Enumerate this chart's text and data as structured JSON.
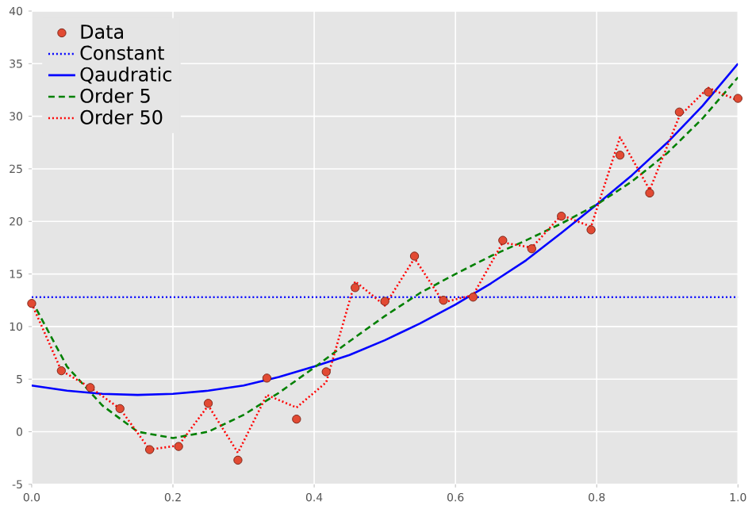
{
  "chart_data": {
    "type": "line",
    "xlim": [
      0,
      1
    ],
    "ylim": [
      -5,
      40
    ],
    "xticks": [
      {
        "value": 0,
        "label": "0.0"
      },
      {
        "value": 0.2,
        "label": "0.2"
      },
      {
        "value": 0.4,
        "label": "0.4"
      },
      {
        "value": 0.6,
        "label": "0.6"
      },
      {
        "value": 0.8,
        "label": "0.8"
      },
      {
        "value": 1,
        "label": "1.0"
      }
    ],
    "yticks": [
      -5,
      0,
      5,
      10,
      15,
      20,
      25,
      30,
      35,
      40
    ],
    "grid": true,
    "legend": "top left",
    "series": [
      {
        "name": "Data",
        "type": "scatter",
        "color": "#e24a33",
        "x": [
          0,
          0.042,
          0.083,
          0.125,
          0.167,
          0.208,
          0.25,
          0.292,
          0.333,
          0.375,
          0.417,
          0.458,
          0.5,
          0.542,
          0.583,
          0.625,
          0.667,
          0.708,
          0.75,
          0.792,
          0.833,
          0.875,
          0.917,
          0.958,
          1
        ],
        "values": [
          12.2,
          5.8,
          4.2,
          2.2,
          -1.7,
          -1.4,
          2.7,
          -2.7,
          5.1,
          1.2,
          5.7,
          13.7,
          12.4,
          16.7,
          12.5,
          12.8,
          18.2,
          17.4,
          20.5,
          19.2,
          26.3,
          22.7,
          30.4,
          32.3,
          31.7
        ]
      },
      {
        "name": "Constant",
        "line_style": "dotted",
        "color": "#0000ff",
        "x": [
          0,
          1
        ],
        "values": [
          12.8,
          12.8
        ]
      },
      {
        "name": "Qaudratic",
        "line_style": "solid",
        "color": "#0000ff",
        "x": [
          0,
          0.05,
          0.1,
          0.15,
          0.2,
          0.25,
          0.3,
          0.35,
          0.4,
          0.45,
          0.5,
          0.55,
          0.6,
          0.65,
          0.7,
          0.75,
          0.8,
          0.85,
          0.9,
          0.95,
          1
        ],
        "values": [
          4.4,
          3.9,
          3.6,
          3.5,
          3.6,
          3.9,
          4.4,
          5.2,
          6.2,
          7.3,
          8.7,
          10.3,
          12.1,
          14.1,
          16.3,
          18.9,
          21.6,
          24.4,
          27.5,
          31.0,
          35.0
        ]
      },
      {
        "name": "Order 5",
        "line_style": "dashed",
        "color": "#008000",
        "x": [
          0,
          0.05,
          0.1,
          0.15,
          0.2,
          0.25,
          0.3,
          0.35,
          0.4,
          0.45,
          0.5,
          0.55,
          0.6,
          0.65,
          0.7,
          0.75,
          0.8,
          0.85,
          0.9,
          0.95,
          1
        ],
        "values": [
          12.5,
          6.2,
          2.5,
          0.0,
          -0.6,
          0.0,
          1.6,
          3.7,
          6.1,
          8.6,
          11.0,
          13.2,
          15.0,
          16.7,
          18.2,
          19.8,
          21.6,
          23.8,
          26.5,
          29.8,
          33.7
        ]
      },
      {
        "name": "Order 50",
        "line_style": "dotted",
        "color": "#ff0000",
        "x": [
          0,
          0.042,
          0.083,
          0.125,
          0.167,
          0.208,
          0.25,
          0.292,
          0.333,
          0.375,
          0.417,
          0.458,
          0.5,
          0.542,
          0.583,
          0.625,
          0.667,
          0.708,
          0.75,
          0.792,
          0.833,
          0.875,
          0.917,
          0.958,
          1
        ],
        "values": [
          12.2,
          5.8,
          4.2,
          2.2,
          -1.7,
          -1.3,
          2.5,
          -2.0,
          3.5,
          2.3,
          4.7,
          14.3,
          12.0,
          16.5,
          12.3,
          13.0,
          18.0,
          17.5,
          20.6,
          19.5,
          28.0,
          23.0,
          30.0,
          32.7,
          31.5
        ]
      }
    ]
  }
}
